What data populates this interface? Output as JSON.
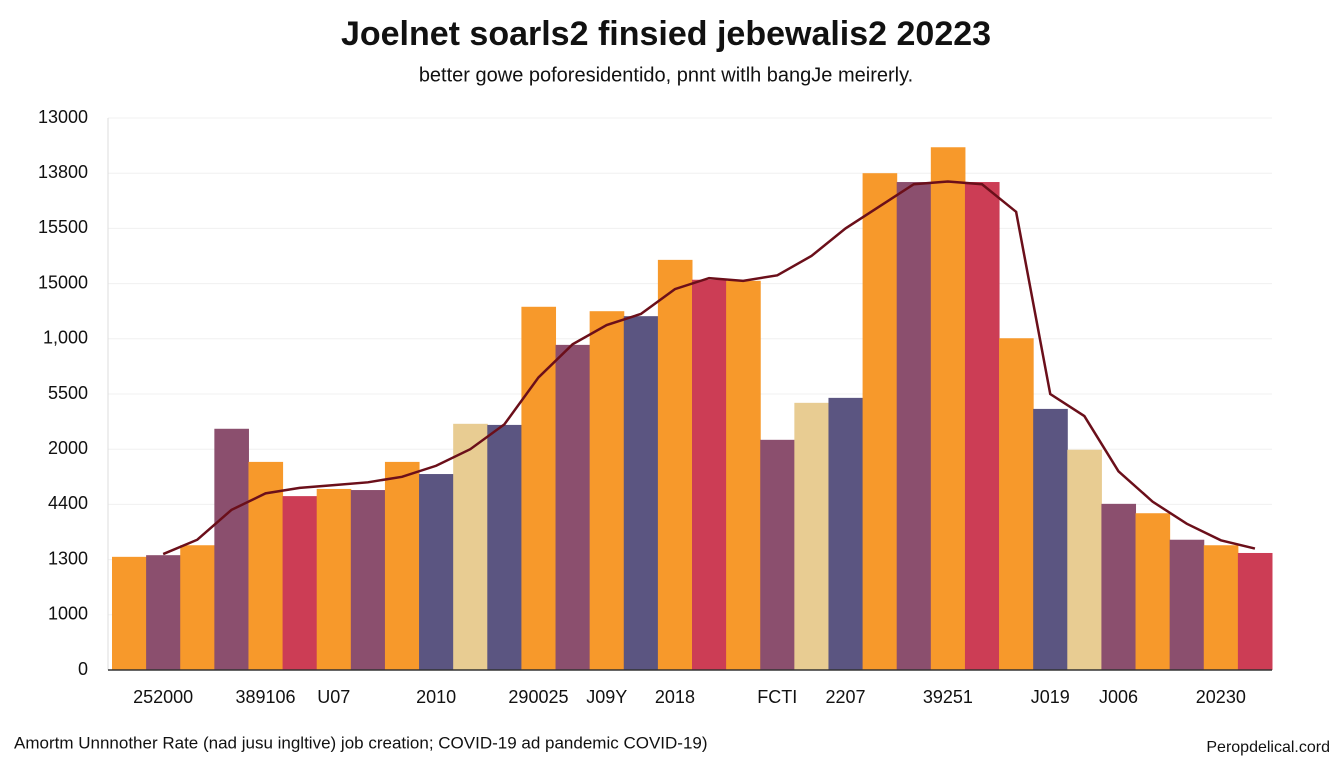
{
  "chart_data": {
    "type": "bar",
    "title": "Joelnet soarls2 finsied jebewalis2 20223",
    "subtitle": "better gowe poforesidentido, pnnt witlh bangJe meirerly.",
    "note": "Amortm Unnnother Rate (nad jusu ingltive) job creation; COVID-19 ad pandemic COVID-19)",
    "source": "Peropdelical.cord",
    "categories": [
      null,
      "252000",
      null,
      null,
      "389106",
      null,
      "U07",
      null,
      null,
      "2010",
      null,
      null,
      "290025",
      null,
      "J09Y",
      null,
      "2018",
      null,
      null,
      "FCTI",
      null,
      "2207",
      null,
      null,
      "39251",
      null,
      null,
      "J019",
      null,
      "J006",
      null,
      null,
      "20230",
      null
    ],
    "values": [
      2050,
      2080,
      2260,
      4370,
      3770,
      3150,
      3280,
      3260,
      3770,
      3550,
      4460,
      4440,
      6580,
      5890,
      6500,
      6410,
      7430,
      7070,
      7050,
      4170,
      4840,
      4930,
      9000,
      8840,
      9470,
      8840,
      6010,
      4730,
      3990,
      3010,
      2840,
      2360,
      2260,
      2120
    ],
    "colors": [
      "#f7992b",
      "#8b4f6e",
      "#f7992b",
      "#8b4f6e",
      "#f7992b",
      "#cc3d55",
      "#f7992b",
      "#8b4f6e",
      "#f7992b",
      "#5b5581",
      "#e8cc92",
      "#5b5581",
      "#f7992b",
      "#8b4f6e",
      "#f7992b",
      "#5b5581",
      "#f7992b",
      "#cc3d55",
      "#f7992b",
      "#8b4f6e",
      "#e8cc92",
      "#5b5581",
      "#f7992b",
      "#8b4f6e",
      "#f7992b",
      "#cc3d55",
      "#f7992b",
      "#5b5581",
      "#e8cc92",
      "#8b4f6e",
      "#f7992b",
      "#8b4f6e",
      "#f7992b",
      "#cc3d55"
    ],
    "line": {
      "color": "#6b0f1a",
      "values": [
        null,
        2100,
        2360,
        2900,
        3200,
        3300,
        3350,
        3400,
        3500,
        3700,
        4000,
        4450,
        5300,
        5900,
        6250,
        6450,
        6900,
        7100,
        7050,
        7150,
        7500,
        8000,
        8400,
        8800,
        8850,
        8800,
        8300,
        5000,
        4600,
        3600,
        3050,
        2650,
        2350,
        2200
      ]
    },
    "ylim": [
      0,
      10000
    ],
    "yticks": [
      0,
      1000,
      {
        "value": 2000,
        "label": "1300"
      },
      {
        "value": 3000,
        "label": "4400"
      },
      {
        "value": 4000,
        "label": "2000"
      },
      {
        "value": 5000,
        "label": "5500"
      },
      {
        "value": 6000,
        "label": "1,000"
      },
      {
        "value": 7000,
        "label": "15000"
      },
      {
        "value": 8000,
        "label": "15500"
      },
      {
        "value": 9000,
        "label": "13800"
      },
      {
        "value": 10000,
        "label": "13000"
      }
    ],
    "grid": true
  }
}
